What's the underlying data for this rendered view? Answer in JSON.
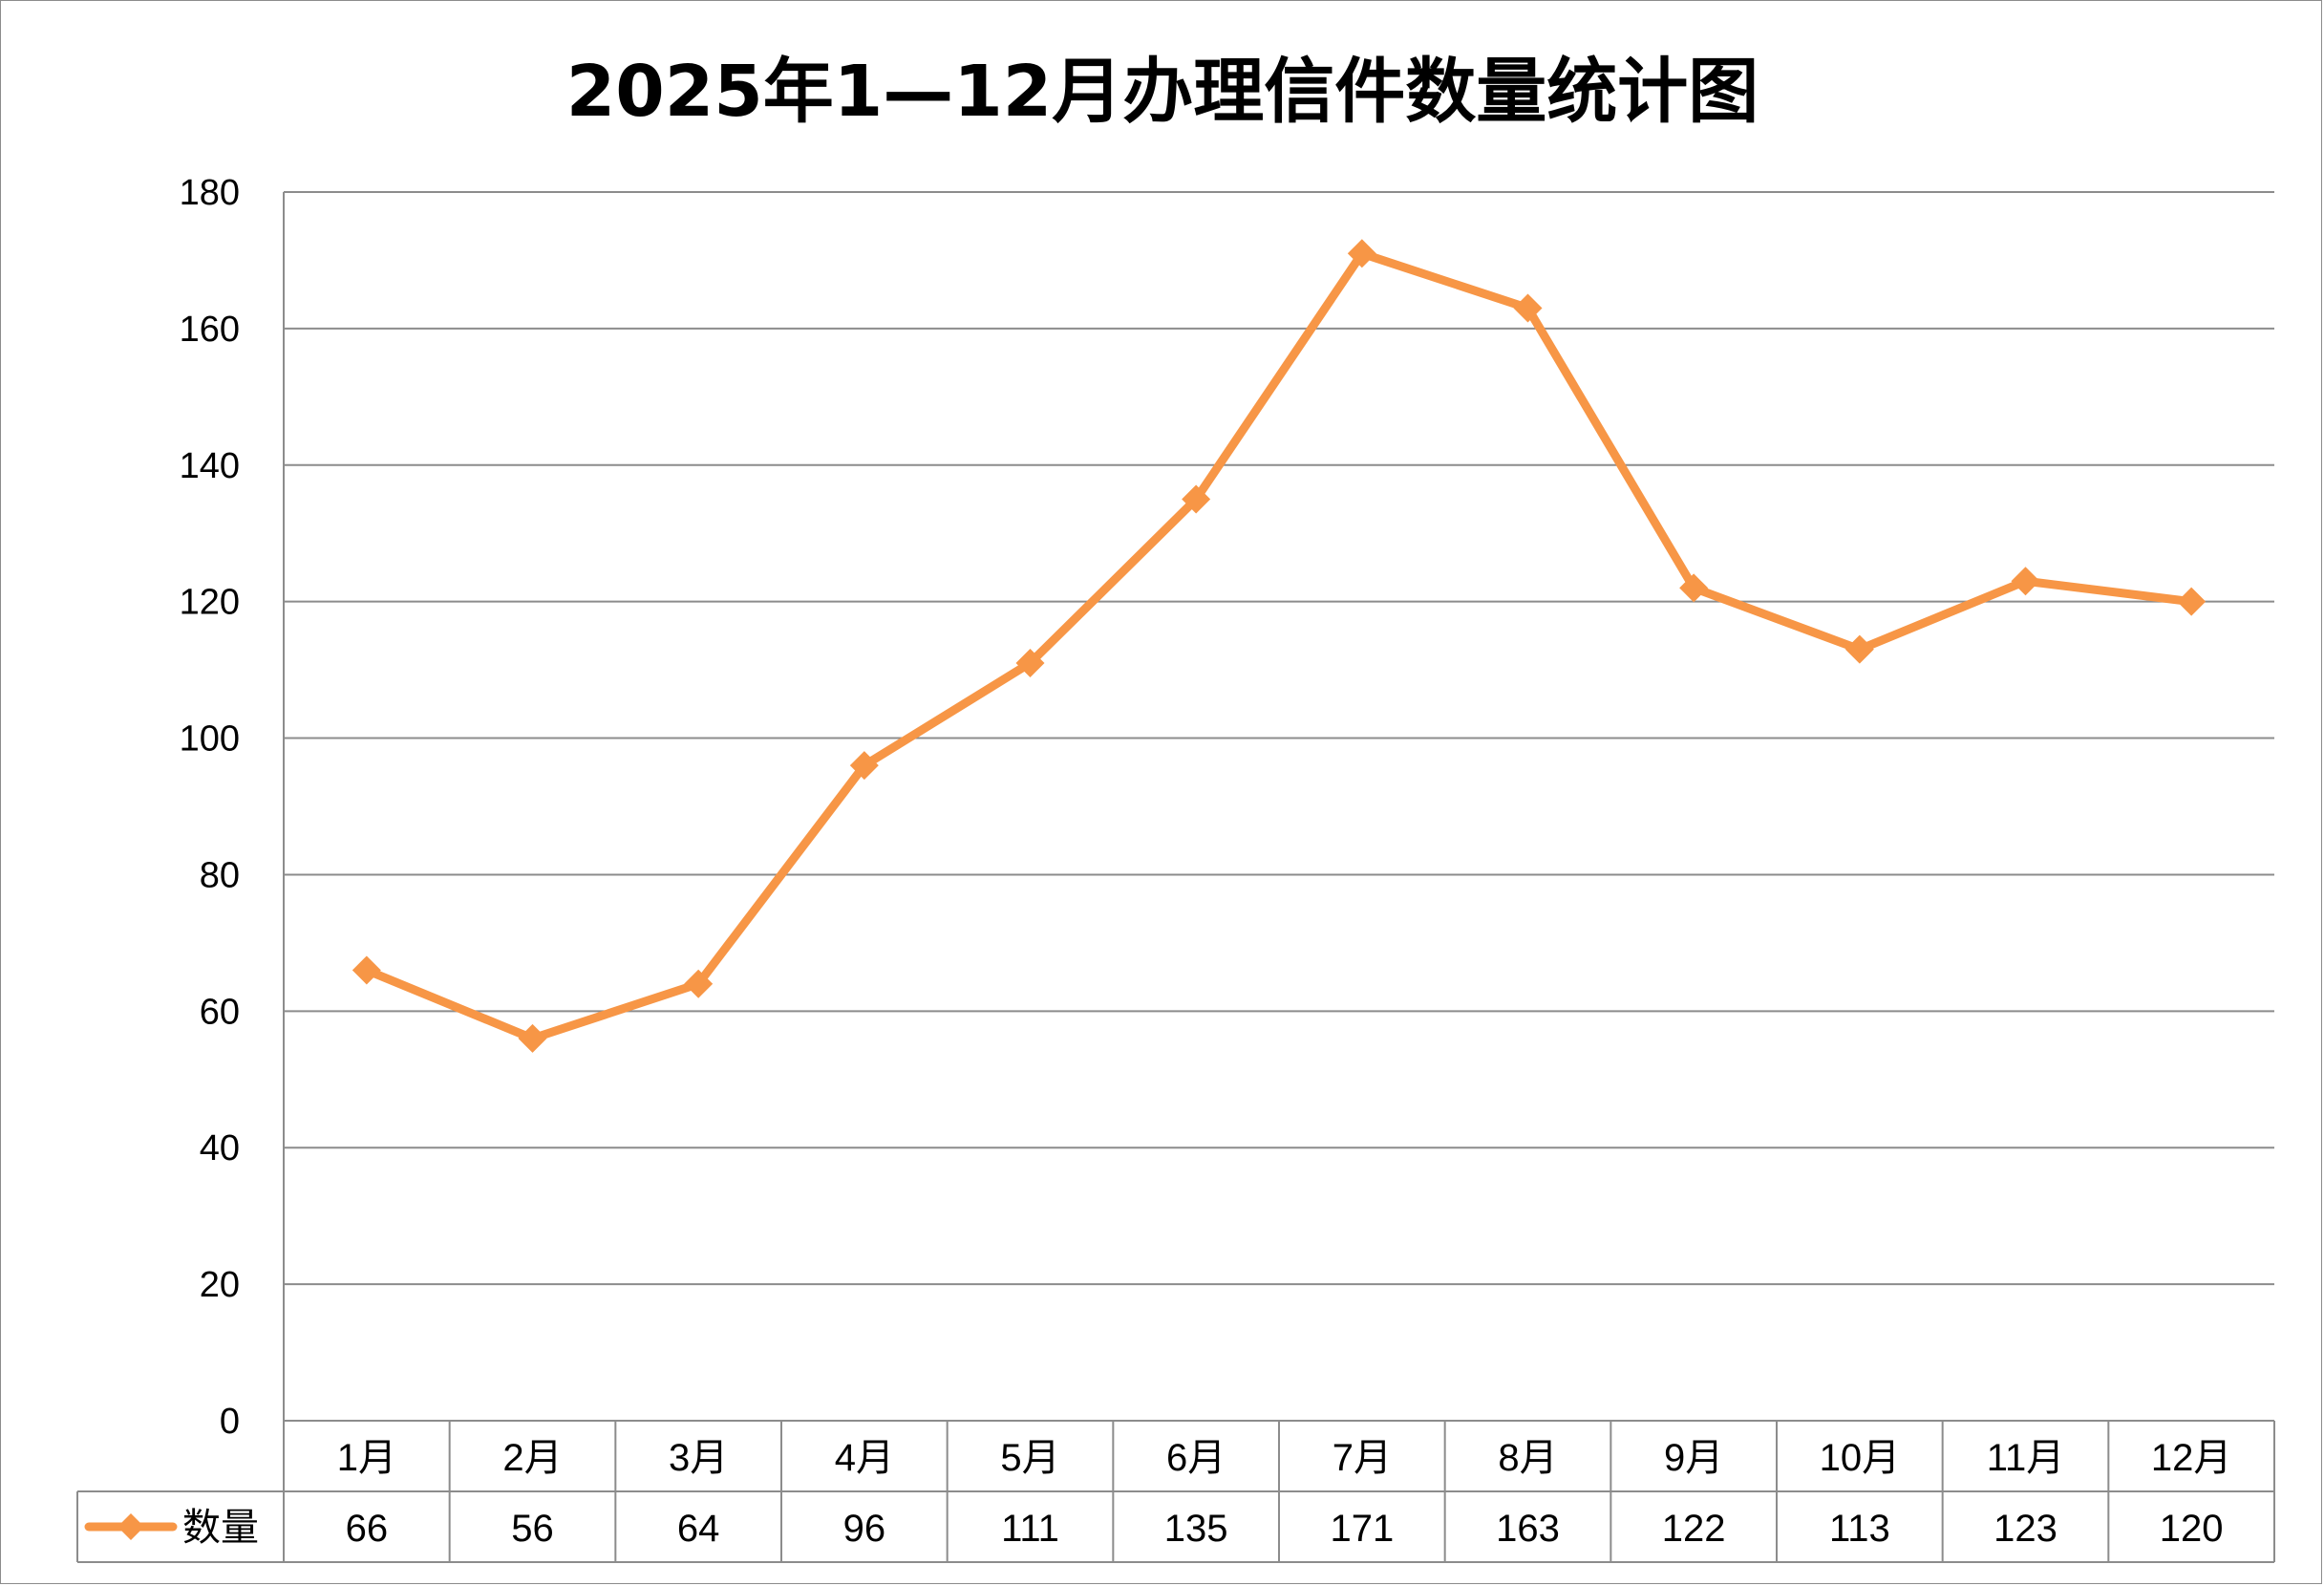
{
  "chart_data": {
    "type": "line",
    "title": "2025年1—12月办理信件数量统计图",
    "categories": [
      "1月",
      "2月",
      "3月",
      "4月",
      "5月",
      "6月",
      "7月",
      "8月",
      "9月",
      "10月",
      "11月",
      "12月"
    ],
    "series": [
      {
        "name": "数量",
        "values": [
          66,
          56,
          64,
          96,
          111,
          135,
          171,
          163,
          122,
          113,
          123,
          120
        ],
        "value_labels": [
          "66",
          "56",
          "64",
          "96",
          "111",
          "135",
          "171",
          "163",
          "122",
          "113",
          "123",
          "120"
        ],
        "color": "#F79646",
        "marker": "diamond"
      }
    ],
    "ylim": [
      0,
      180
    ],
    "yticks": [
      0,
      20,
      40,
      60,
      80,
      100,
      120,
      140,
      160,
      180
    ],
    "ytick_labels": [
      "0",
      "20",
      "40",
      "60",
      "80",
      "100",
      "120",
      "140",
      "160",
      "180"
    ],
    "grid": true,
    "data_table": true,
    "legend": "data-table-left"
  }
}
